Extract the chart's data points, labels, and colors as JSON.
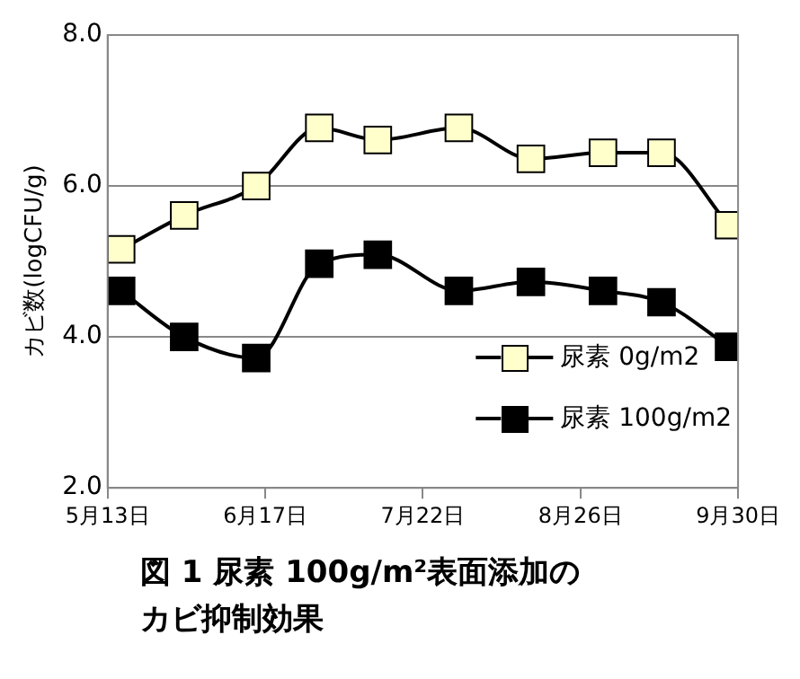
{
  "chart_data": {
    "type": "line",
    "title": "図 1 尿素 100g/m²表面添加のカビ抑制効果",
    "ylabel": "カビ数(logCFU/g)",
    "x": [
      "--05-16",
      "--05-30",
      "--06-15",
      "--06-29",
      "--07-12",
      "--07-30",
      "--08-15",
      "--08-31",
      "--09-13",
      "--09-28"
    ],
    "series": [
      {
        "name": "尿素 0g/m2",
        "color": "#ffffcc",
        "values": [
          5.16,
          5.61,
          6.0,
          6.77,
          6.61,
          6.77,
          6.36,
          6.44,
          6.44,
          5.48
        ]
      },
      {
        "name": "尿素 100g/m2",
        "color": "#000000",
        "values": [
          4.61,
          4.0,
          3.72,
          4.97,
          5.09,
          4.61,
          4.73,
          4.61,
          4.46,
          3.87
        ]
      }
    ],
    "xlim": [
      "--05-13",
      "--09-30"
    ],
    "xticks": [
      {
        "value": "--05-13",
        "label": "5月13日"
      },
      {
        "value": "--06-17",
        "label": "6月17日"
      },
      {
        "value": "--07-22",
        "label": "7月22日"
      },
      {
        "value": "--08-26",
        "label": "8月26日"
      },
      {
        "value": "--09-30",
        "label": "9月30日"
      }
    ],
    "ylim": [
      2,
      8
    ],
    "yticks": [
      {
        "value": 2,
        "label": "2.0"
      },
      {
        "value": 4,
        "label": "4.0"
      },
      {
        "value": 6,
        "label": "6.0"
      },
      {
        "value": 8,
        "label": "8.0"
      }
    ],
    "grid": "y",
    "legend": "bottom right",
    "marker": "square",
    "line_style": "solid"
  }
}
